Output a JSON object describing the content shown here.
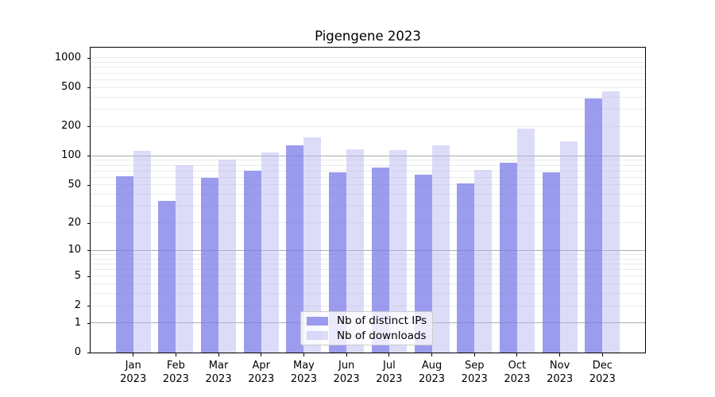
{
  "chart_data": {
    "type": "bar",
    "title": "Pigengene 2023",
    "xlabel": "",
    "ylabel": "",
    "categories": [
      "Jan",
      "Feb",
      "Mar",
      "Apr",
      "May",
      "Jun",
      "Jul",
      "Aug",
      "Sep",
      "Oct",
      "Nov",
      "Dec"
    ],
    "x_sublabel": "2023",
    "series": [
      {
        "name": "Nb of distinct IPs",
        "color": "#9d9dee",
        "bar_color_css": "rgba(125,125,232,0.76)",
        "values": [
          61,
          34,
          59,
          70,
          127,
          68,
          75,
          64,
          52,
          85,
          67,
          384
        ]
      },
      {
        "name": "Nb of downloads",
        "color": "#dcdcf9",
        "bar_color_css": "rgba(177,177,242,0.45)",
        "values": [
          113,
          80,
          91,
          109,
          154,
          116,
          115,
          128,
          72,
          190,
          141,
          460
        ]
      }
    ],
    "yscale": "log1p",
    "ylim": [
      0,
      1300
    ],
    "yticks": [
      0,
      1,
      2,
      5,
      10,
      20,
      50,
      100,
      200,
      500,
      1000
    ],
    "gridlines": {
      "major": [
        1,
        10,
        100
      ],
      "minor": [
        2,
        3,
        4,
        5,
        6,
        7,
        8,
        9,
        20,
        30,
        40,
        50,
        60,
        70,
        80,
        90,
        200,
        300,
        400,
        500,
        600,
        700,
        800,
        900,
        1000
      ],
      "major_color": "#ababab",
      "minor_color": "#ebebeb"
    },
    "legend_position": "bottom-center",
    "grid": true
  }
}
